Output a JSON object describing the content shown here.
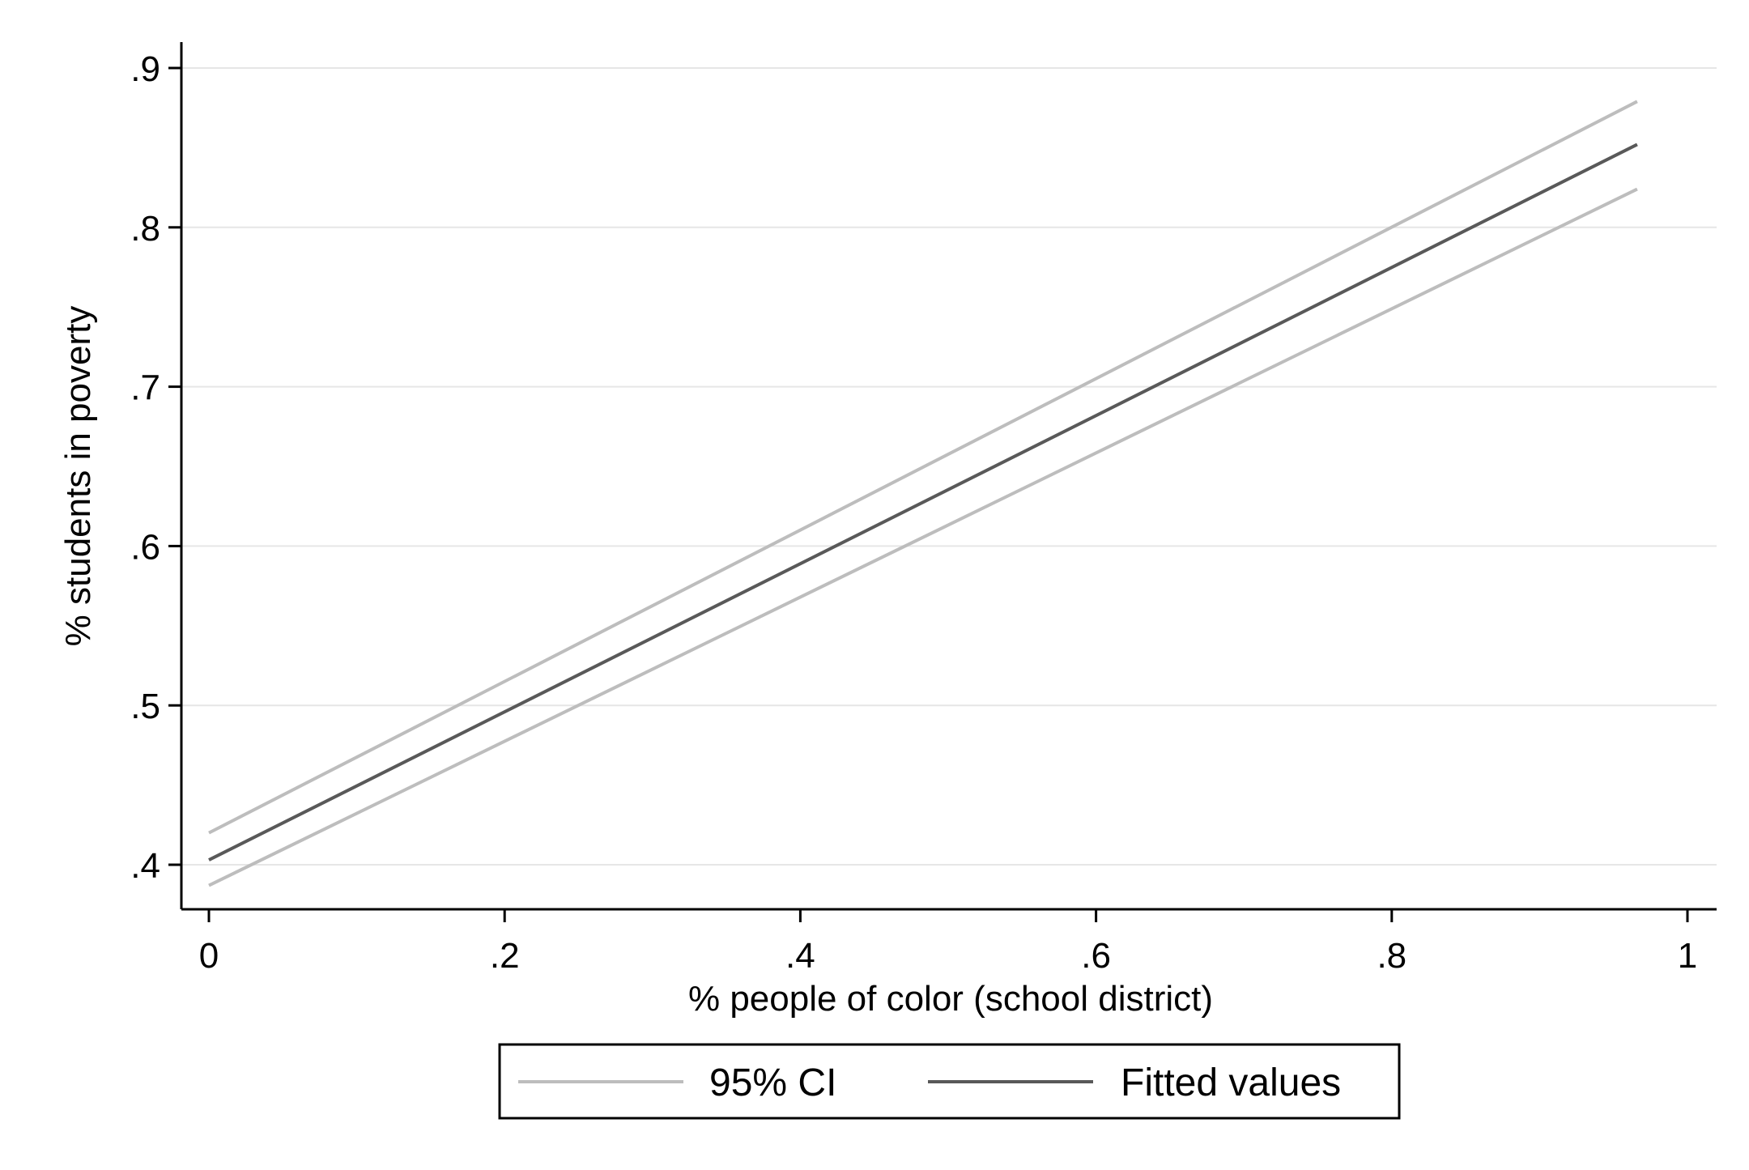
{
  "chart_data": {
    "type": "line",
    "title": "",
    "xlabel": "% people of color (school district)",
    "ylabel": "% students in poverty",
    "xlim": [
      -0.02,
      1.02
    ],
    "ylim": [
      0.372,
      0.915
    ],
    "x_ticks": [
      {
        "value": 0,
        "label": "0"
      },
      {
        "value": 0.2,
        "label": ".2"
      },
      {
        "value": 0.4,
        "label": ".4"
      },
      {
        "value": 0.6,
        "label": ".6"
      },
      {
        "value": 0.8,
        "label": ".8"
      },
      {
        "value": 1,
        "label": "1"
      }
    ],
    "y_ticks": [
      {
        "value": 0.4,
        "label": ".4"
      },
      {
        "value": 0.5,
        "label": ".5"
      },
      {
        "value": 0.6,
        "label": ".6"
      },
      {
        "value": 0.7,
        "label": ".7"
      },
      {
        "value": 0.8,
        "label": ".8"
      },
      {
        "value": 0.9,
        "label": ".9"
      }
    ],
    "grid": "horizontal",
    "legend_position": "bottom",
    "series": [
      {
        "key": "ci-upper",
        "color": "#bdbdbd",
        "x": [
          0,
          0.966
        ],
        "y": [
          0.42,
          0.879
        ]
      },
      {
        "key": "ci-lower",
        "color": "#bdbdbd",
        "x": [
          0,
          0.966
        ],
        "y": [
          0.387,
          0.824
        ]
      },
      {
        "key": "fitted",
        "color": "#595959",
        "x": [
          0,
          0.966
        ],
        "y": [
          0.403,
          0.852
        ]
      }
    ],
    "legend": [
      {
        "label": "95% CI",
        "color": "#bdbdbd"
      },
      {
        "label": "Fitted values",
        "color": "#595959"
      }
    ]
  }
}
